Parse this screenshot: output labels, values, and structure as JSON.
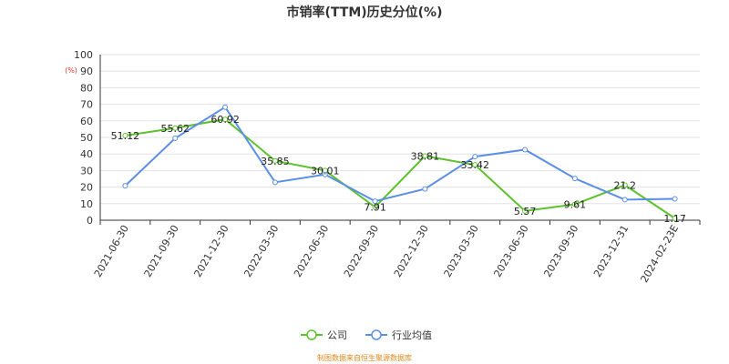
{
  "chart_data": {
    "type": "line",
    "title": "市销率(TTM)历史分位(%)",
    "unit": "(%)",
    "categories": [
      "2021-06-30",
      "2021-09-30",
      "2021-12-30",
      "2022-03-30",
      "2022-06-30",
      "2022-09-30",
      "2022-12-30",
      "2023-03-30",
      "2023-06-30",
      "2023-09-30",
      "2023-12-31",
      "2024-02-23E"
    ],
    "ylim": [
      0,
      100
    ],
    "yticks": [
      0,
      10,
      20,
      30,
      40,
      50,
      60,
      70,
      80,
      90,
      100
    ],
    "grid": true,
    "legend_position": "bottom",
    "series": [
      {
        "name": "公司",
        "color": "#5cc22c",
        "values": [
          51.12,
          55.62,
          60.92,
          35.85,
          30.01,
          7.91,
          38.81,
          33.42,
          5.57,
          9.61,
          21.2,
          1.17
        ],
        "labels": [
          "51.12",
          "55.62",
          "60.92",
          "35.85",
          "30.01",
          "7.91",
          "38.81",
          "33.42",
          "5.57",
          "9.61",
          "21.2",
          "1.17"
        ]
      },
      {
        "name": "行业均值",
        "color": "#5b8ee6",
        "values": [
          20.8,
          49.5,
          68.3,
          22.9,
          27.6,
          11.5,
          18.9,
          38.4,
          42.6,
          25.2,
          12.4,
          12.9
        ]
      }
    ]
  },
  "source": "制图数据来自恒生聚源数据库"
}
